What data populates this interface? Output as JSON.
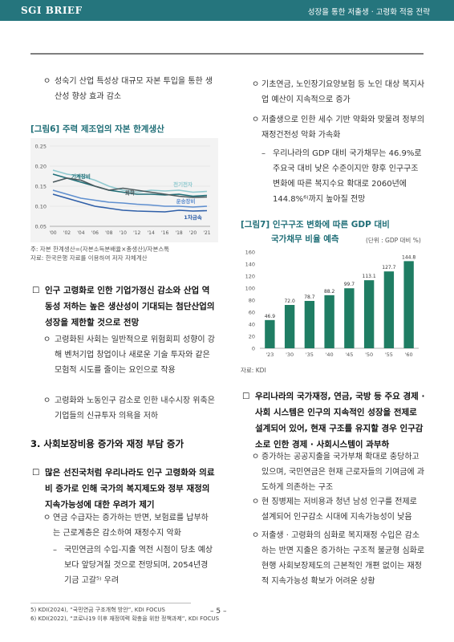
{
  "header": {
    "brand": "SGI BRIEF",
    "title": "성장을 통한 저출생 · 고령화 적응 전략"
  },
  "left": {
    "p1": "성숙기 산업 특성상 대규모 자본 투입을 통한 생산성 향상 효과 감소",
    "fig6": {
      "title": "[그림6] 주력 제조업의 자본 한계생산",
      "notes": [
        "주: 자본 한계생산=(자본소득분배율×총생산)/자본스톡",
        "자료: 한국은행 자료를 이용하여 저자 자체계산"
      ]
    },
    "h1": "인구 고령화로 인한 기업가정신 감소와 산업 역동성 저하는 높은 생산성이 기대되는 첨단산업의 성장을 제한할 것으로 전망",
    "p2": "고령화된 사회는 일반적으로 위험회피 성향이 강해 벤처기업 창업이나 새로운 기술 투자와 같은 모험적 시도를 줄이는 요인으로 작용",
    "p3": "고령화와 노동인구 감소로 인한 내수시장 위축은 기업들의 신규투자 의욕을 저하",
    "section3": "3. 사회보장비용 증가와 재정 부담 증가",
    "h2": "많은 선진국처럼 우리나라도 인구 고령화와 의료비 증가로 인해 국가의 복지제도와 정부 재정의 지속가능성에 대한 우려가 제기",
    "p4": "연금 수급자는 증가하는 반면, 보험료를 납부하는 근로계층은 감소하여 재정수지 악화",
    "p5": "국민연금의 수입-지출 역전 시점이 당초 예상보다 앞당겨질 것으로 전망되며, 2054년경 기금 고갈⁵⁾ 우려"
  },
  "right": {
    "p1": "기초연금, 노인장기요양보험 등 노인 대상 복지사업 예산이 지속적으로 증가",
    "p2": "저출생으로 인한 세수 기반 약화와 맞물려 정부의 재정건전성 악화 가속화",
    "p3": "우리나라의 GDP 대비 국가채무는 46.9%로 주요국 대비 낮은 수준이지만 향후 인구구조변화에 따른 복지수요 확대로 2060년에 144.8%⁶⁾까지 높아질 전망",
    "fig7": {
      "title_l1": "[그림7] 인구구조 변화에 따른 GDP 대비",
      "title_l2": "국가채무 비율 예측",
      "unit": "(단위 : GDP 대비 %)",
      "source": "자료: KDI"
    },
    "h1": "우리나라의 국가재정, 연금, 국방 등 주요 경제 · 사회 시스템은 인구의 지속적인 성장을 전제로 설계되어 있어, 현재 구조를 유지할 경우 인구감소로 인한 경제 · 사회시스템이 과부하",
    "p4": "증가하는 공공지출을 국가부채 확대로 충당하고 있으며, 국민연금은 현재 근로자들의 기여금에 과도하게 의존하는 구조",
    "p5": "현 징병제는 저비용과 청년 남성 인구를 전제로 설계되어 인구감소 시대에 지속가능성이 낮음",
    "p6": "저출생 · 고령화의 심화로 복지재정 수입은 감소하는 반면 지출은 증가하는 구조적 불균형 심화로 현행 사회보장제도의 근본적인 개편 없이는 재정적 지속가능성 확보가 어려운 상황"
  },
  "markers": {
    "circle": "ㅇ",
    "square": "☐",
    "dash": "–"
  },
  "footer": {
    "page": "– 5 –",
    "fn5": "5) KDI(2024), “국민연금 구조개혁 방안”, KDI FOCUS",
    "fn6": "6) KDI(2022), “코로나19 이후 재정여력 확충을 위한 정책과제”, KDI FOCUS"
  },
  "chart_data": [
    {
      "type": "line",
      "title": "[그림6] 주력 제조업의 자본 한계생산",
      "x": [
        "'00",
        "'02",
        "'04",
        "'06",
        "'08",
        "'10",
        "'12",
        "'14",
        "'16",
        "'18",
        "'20",
        "'21"
      ],
      "ylim": [
        0.05,
        0.25
      ],
      "yticks": [
        "0.25",
        "0.20",
        "0.15",
        "0.10",
        "0.05"
      ],
      "series": [
        {
          "name": "전기전자",
          "color": "#8fc9cf",
          "values": [
            0.19,
            0.18,
            0.175,
            0.165,
            0.15,
            0.14,
            0.135,
            0.14,
            0.138,
            0.14,
            0.135,
            0.137
          ]
        },
        {
          "name": "기계장비",
          "color": "#1f6e77",
          "values": [
            0.18,
            0.17,
            0.16,
            0.15,
            0.14,
            0.135,
            0.13,
            0.13,
            0.128,
            0.13,
            0.125,
            0.127
          ]
        },
        {
          "name": "화학",
          "color": "#4b5a5e",
          "values": [
            0.16,
            0.17,
            0.165,
            0.15,
            0.14,
            0.145,
            0.14,
            0.135,
            0.13,
            0.125,
            0.122,
            0.123
          ]
        },
        {
          "name": "운송장비",
          "color": "#5f8fcf",
          "values": [
            0.14,
            0.13,
            0.12,
            0.115,
            0.11,
            0.108,
            0.105,
            0.103,
            0.1,
            0.1,
            0.098,
            0.1
          ]
        },
        {
          "name": "1차금속",
          "color": "#2f5fa8",
          "values": [
            0.13,
            0.12,
            0.11,
            0.1,
            0.095,
            0.09,
            0.088,
            0.087,
            0.086,
            0.09,
            0.088,
            0.089
          ]
        }
      ]
    },
    {
      "type": "bar",
      "title": "[그림7] 인구구조 변화에 따른 GDP 대비 국가채무 비율 예측",
      "categories": [
        "'23",
        "'30",
        "'35",
        "'40",
        "'45",
        "'50",
        "'55",
        "'60"
      ],
      "values": [
        46.9,
        72.0,
        78.7,
        88.2,
        99.7,
        113.1,
        127.7,
        144.8
      ],
      "value_labels": [
        "46.9",
        "72.0",
        "78.7",
        "88.2",
        "99.7",
        "113.1",
        "127.7",
        "144.8"
      ],
      "ylim": [
        0,
        160
      ],
      "yticks": [
        "160",
        "140",
        "120",
        "100",
        "80",
        "60",
        "40",
        "20",
        "0"
      ],
      "color": "#1f7d63"
    }
  ]
}
